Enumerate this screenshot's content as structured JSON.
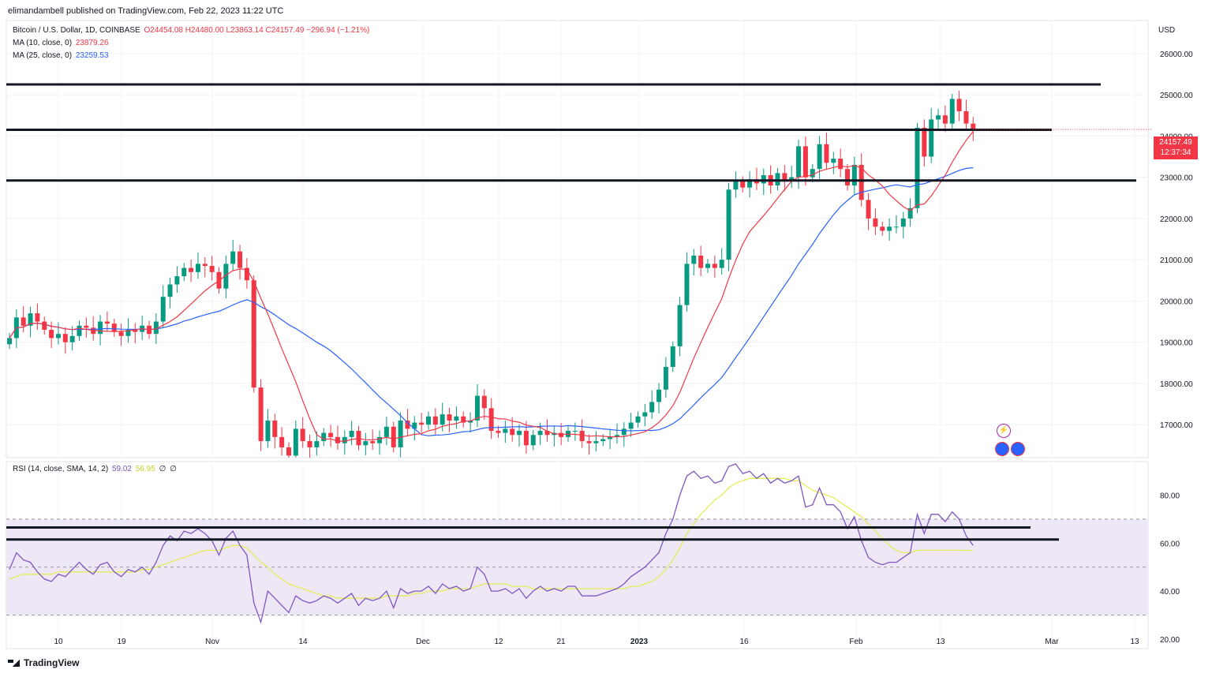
{
  "header": {
    "published_by": "elimandambell published on TradingView.com, Feb 22, 2023 11:22 UTC"
  },
  "legend": {
    "symbol": "Bitcoin / U.S. Dollar, 1D, COINBASE",
    "ohlc": "O24454.08  H24480.00  L23863.14  C24157.49  −296.94 (−1.21%)",
    "ma10_label": "MA (10, close, 0)",
    "ma10_value": "23879.26",
    "ma25_label": "MA (25, close, 0)",
    "ma25_value": "23259.53",
    "rsi_label": "RSI (14, close, SMA, 14, 2)",
    "rsi_value": "59.02",
    "rsi_sma_value": "56.95",
    "rsi_extra1": "∅",
    "rsi_extra2": "∅"
  },
  "price_tag": {
    "price": "24157.49",
    "countdown": "12:37:34"
  },
  "currency": "USD",
  "footer": {
    "brand": "TradingView"
  },
  "colors": {
    "up": "#089981",
    "down": "#f23645",
    "ma10": "#f23645",
    "ma25": "#2962ff",
    "rsi": "#7e57c2",
    "rsi_sma": "#e6ec5a",
    "rsi_band": "#ede7f6",
    "level_line": "#131722"
  },
  "chart_data": [
    {
      "type": "candlestick",
      "y_ticks": [
        "26000.00",
        "25000.00",
        "24000.00",
        "23000.00",
        "22000.00",
        "21000.00",
        "20000.00",
        "19000.00",
        "18000.00",
        "17000.00"
      ],
      "x_ticks": [
        "10",
        "19",
        "Nov",
        "14",
        "Dec",
        "12",
        "21",
        "2023",
        "16",
        "Feb",
        "13",
        "Mar",
        "13"
      ],
      "ylim": [
        16200,
        26800
      ],
      "horizontal_levels": [
        25250,
        24150,
        22920
      ],
      "closes": [
        19100,
        19600,
        19400,
        19700,
        19500,
        19300,
        19100,
        19200,
        19000,
        19150,
        19400,
        19350,
        19200,
        19500,
        19450,
        19250,
        19150,
        19300,
        19250,
        19400,
        19200,
        19500,
        20100,
        20400,
        20600,
        20800,
        20700,
        20900,
        20850,
        20700,
        20300,
        20900,
        21200,
        20800,
        20500,
        17900,
        16600,
        17100,
        16700,
        16450,
        16250,
        16900,
        16600,
        16450,
        16600,
        16800,
        16700,
        16550,
        16700,
        16850,
        16500,
        16600,
        16550,
        16700,
        16950,
        16450,
        17100,
        16900,
        17050,
        17000,
        17200,
        17000,
        17250,
        17100,
        17200,
        17050,
        17100,
        17700,
        17400,
        16850,
        16800,
        16900,
        16750,
        16850,
        16500,
        16750,
        16850,
        16750,
        16800,
        16700,
        16850,
        16850,
        16600,
        16550,
        16600,
        16650,
        16700,
        16750,
        16900,
        17050,
        17200,
        17300,
        17550,
        17850,
        18400,
        18900,
        19900,
        20900,
        21100,
        20800,
        20900,
        20800,
        21000,
        22700,
        22900,
        22750,
        22950,
        22850,
        23050,
        22800,
        23100,
        22900,
        23000,
        23750,
        23000,
        23200,
        23800,
        23350,
        23450,
        23200,
        22800,
        23300,
        22450,
        22000,
        21800,
        21700,
        21800,
        21800,
        22000,
        22250,
        24200,
        23500,
        24400,
        24500,
        24300,
        24900,
        24600,
        24300,
        24157.49
      ]
    },
    {
      "type": "line",
      "name": "RSI (14, close, SMA, 14, 2)",
      "y_ticks": [
        "80.00",
        "60.00",
        "40.00",
        "20.00"
      ],
      "ylim": [
        16,
        94
      ],
      "band": [
        30,
        70
      ],
      "midline": 50,
      "horizontal_levels": [
        66.5,
        61.5
      ],
      "series": [
        {
          "name": "RSI",
          "values": [
            49,
            56,
            53,
            52,
            48,
            45,
            44,
            47,
            46,
            49,
            52,
            49,
            47,
            51,
            52,
            48,
            46,
            49,
            48,
            50,
            47,
            52,
            59,
            63,
            61,
            65,
            64,
            66,
            64,
            61,
            55,
            62,
            65,
            59,
            55,
            35,
            27,
            40,
            37,
            34,
            31,
            38,
            36,
            35,
            36,
            38,
            37,
            35,
            37,
            39,
            34,
            37,
            36,
            37,
            40,
            33,
            41,
            39,
            40,
            40,
            42,
            39,
            43,
            41,
            42,
            40,
            41,
            50,
            47,
            40,
            40,
            41,
            39,
            41,
            37,
            40,
            42,
            40,
            41,
            40,
            42,
            42,
            38,
            38,
            38,
            39,
            40,
            41,
            43,
            46,
            48,
            50,
            53,
            56,
            64,
            70,
            80,
            88,
            90,
            87,
            88,
            85,
            86,
            92,
            93,
            89,
            90,
            87,
            89,
            85,
            87,
            85,
            86,
            88,
            75,
            76,
            83,
            76,
            76,
            73,
            66,
            71,
            61,
            54,
            52,
            51,
            52,
            52,
            54,
            56,
            72,
            64,
            72,
            72,
            69,
            73,
            70,
            63,
            59.02
          ]
        },
        {
          "name": "RSI SMA",
          "values": [
            45,
            46,
            47,
            47,
            47,
            47,
            47,
            48,
            48,
            48,
            48,
            48,
            48,
            48,
            48,
            48,
            48,
            48,
            48,
            49,
            49,
            50,
            51,
            52,
            53,
            54,
            55,
            56,
            57,
            57,
            57,
            58,
            59,
            59,
            58,
            55,
            52,
            50,
            47,
            45,
            43,
            42,
            41,
            40,
            39,
            38,
            38,
            37,
            37,
            37,
            37,
            37,
            37,
            37,
            38,
            38,
            38,
            38,
            39,
            39,
            40,
            40,
            40,
            41,
            41,
            41,
            41,
            42,
            43,
            43,
            43,
            43,
            42,
            42,
            42,
            41,
            41,
            41,
            41,
            41,
            41,
            41,
            41,
            41,
            41,
            41,
            41,
            41,
            41,
            42,
            42,
            43,
            44,
            46,
            49,
            53,
            58,
            64,
            68,
            72,
            75,
            78,
            80,
            83,
            85,
            86,
            87,
            87,
            87,
            87,
            87,
            87,
            86,
            86,
            84,
            82,
            81,
            80,
            79,
            77,
            75,
            73,
            71,
            68,
            65,
            62,
            59,
            57,
            56,
            56,
            57,
            57,
            57,
            57,
            57,
            57,
            57,
            57,
            56.95
          ]
        }
      ]
    }
  ]
}
